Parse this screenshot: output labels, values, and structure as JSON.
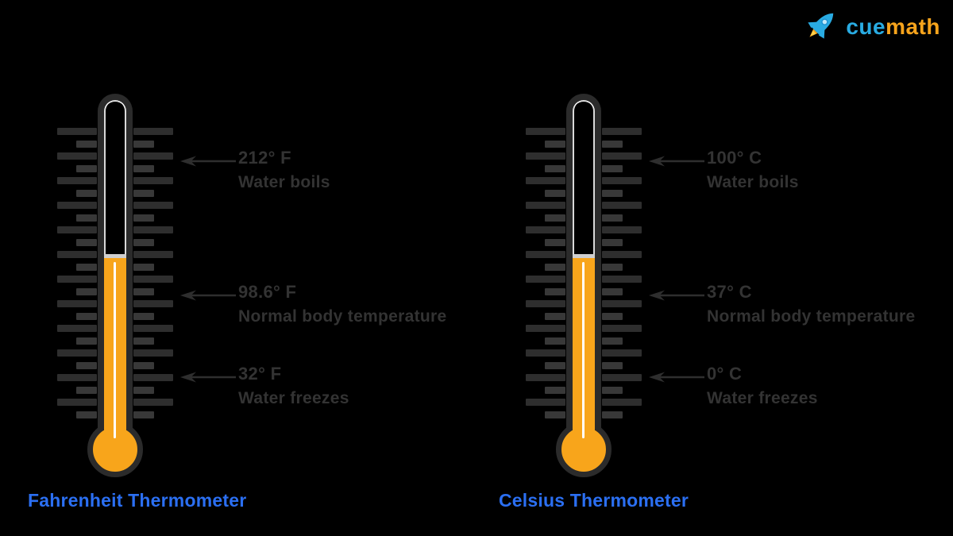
{
  "logo": {
    "brand_cue": "cue",
    "brand_math": "math",
    "icon": "rocket-icon",
    "cue_color": "#29ABE2",
    "math_color": "#F7A41C"
  },
  "thermometers": [
    {
      "id": "fahrenheit",
      "title": "Fahrenheit Thermometer",
      "markers": [
        {
          "value": "212° F",
          "label": "Water boils"
        },
        {
          "value": "98.6° F",
          "label": "Normal body temperature"
        },
        {
          "value": "32° F",
          "label": "Water freezes"
        }
      ]
    },
    {
      "id": "celsius",
      "title": "Celsius Thermometer",
      "markers": [
        {
          "value": "100° C",
          "label": "Water boils"
        },
        {
          "value": "37° C",
          "label": "Normal body temperature"
        },
        {
          "value": "0° C",
          "label": "Water freezes"
        }
      ]
    }
  ],
  "colors": {
    "background": "#000000",
    "mercury_fill": "#F8A51B",
    "outline": "#2B2B2B",
    "tick": "#2E2E2E",
    "label_text": "#333333",
    "title_text": "#2B6FF2",
    "highlight": "#FFFFFF",
    "meniscus": "#CFCFCF"
  }
}
